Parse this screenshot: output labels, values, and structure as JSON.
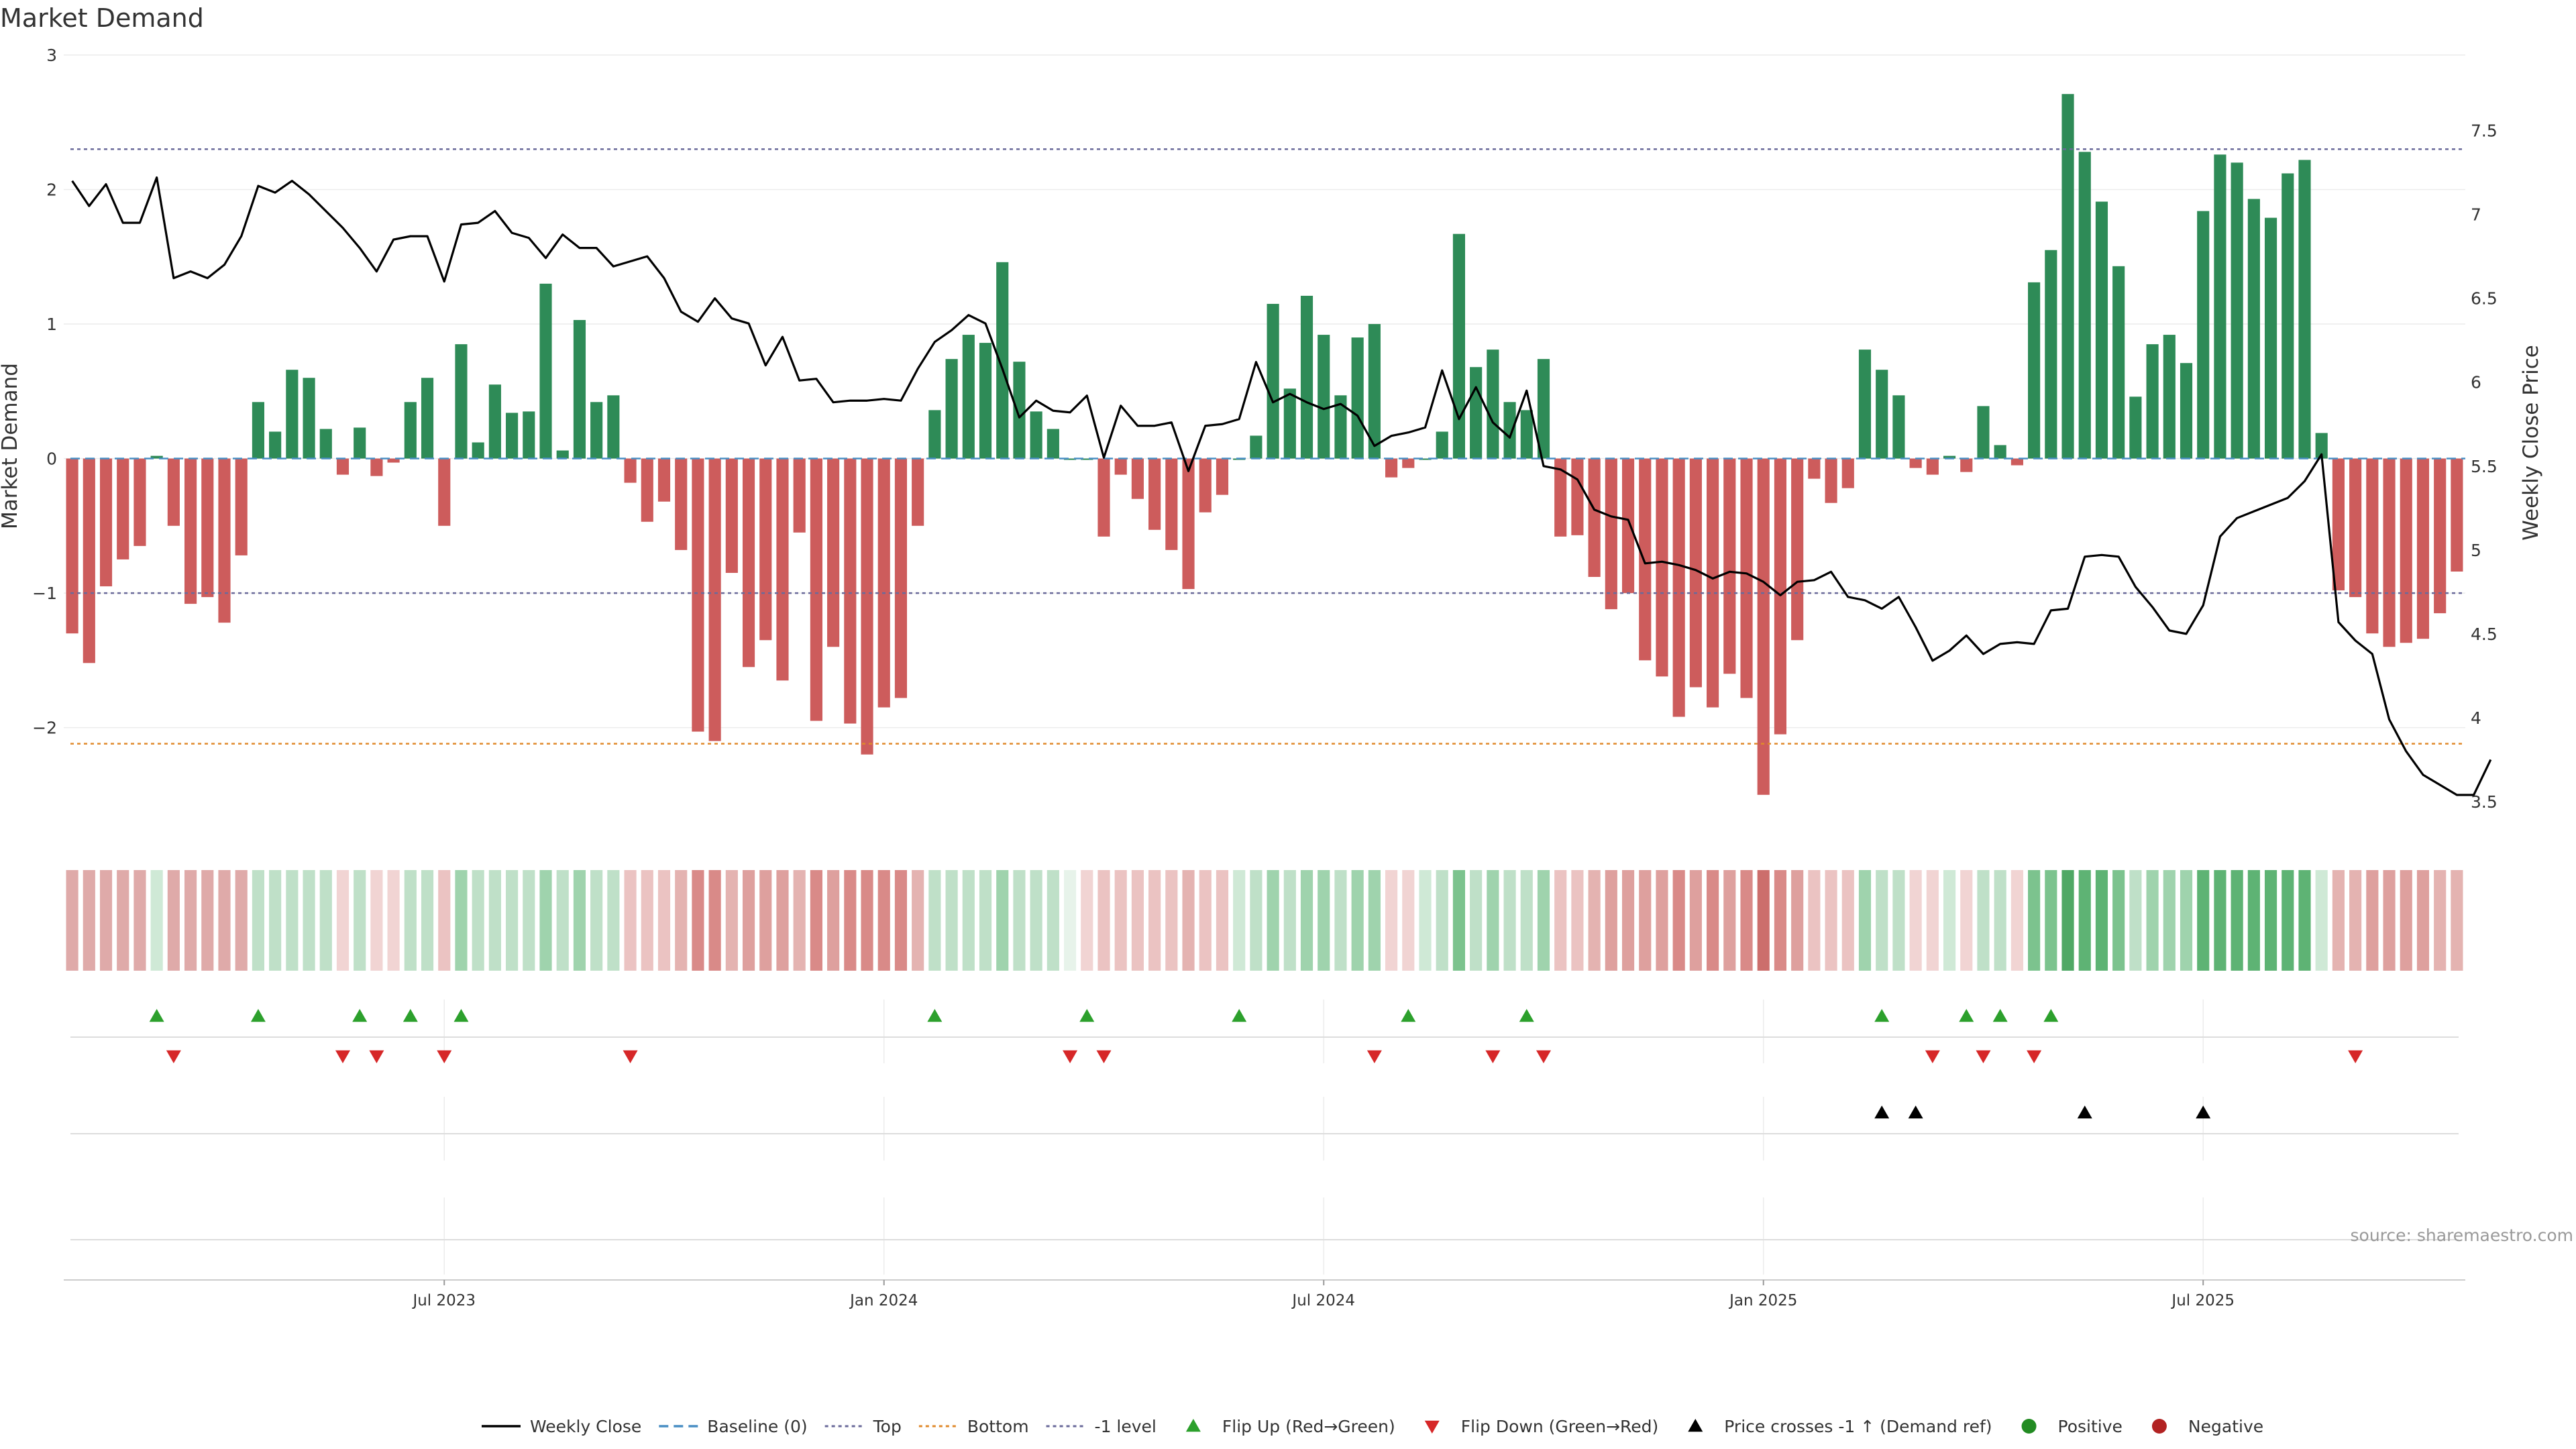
{
  "chart_data": {
    "type": "bar",
    "title": "Market Demand",
    "ylabel": "Market Demand",
    "y2label": "Weekly Close Price",
    "ylim": [
      -2.8,
      3.0
    ],
    "y2lim": [
      3.3,
      7.95
    ],
    "left_ticks": [
      {
        "value": 3,
        "label": "3"
      },
      {
        "value": 2,
        "label": "2"
      },
      {
        "value": 1,
        "label": "1"
      },
      {
        "value": 0,
        "label": "0"
      },
      {
        "value": -1,
        "label": "−1"
      },
      {
        "value": -2,
        "label": "−2"
      }
    ],
    "right_ticks": [
      {
        "value": 7.5,
        "label": "7.5"
      },
      {
        "value": 7,
        "label": "7"
      },
      {
        "value": 6.5,
        "label": "6.5"
      },
      {
        "value": 6,
        "label": "6"
      },
      {
        "value": 5.5,
        "label": "5.5"
      },
      {
        "value": 5,
        "label": "5"
      },
      {
        "value": 4.5,
        "label": "4.5"
      },
      {
        "value": 4,
        "label": "4"
      },
      {
        "value": 3.5,
        "label": "3.5"
      }
    ],
    "x_ticks": [
      {
        "week": 22,
        "label": "Jul 2023"
      },
      {
        "week": 48,
        "label": "Jan 2024"
      },
      {
        "week": 74,
        "label": "Jul 2024"
      },
      {
        "week": 100,
        "label": "Jan 2025"
      },
      {
        "week": 126,
        "label": "Jul 2025"
      }
    ],
    "reference_lines": {
      "top": 2.3,
      "bottom": -2.12,
      "minus_one": -1.0
    },
    "demand": [
      -1.3,
      -1.52,
      -0.95,
      -0.75,
      -0.65,
      0.02,
      -0.5,
      -1.08,
      -1.03,
      -1.22,
      -0.72,
      0.42,
      0.2,
      0.66,
      0.6,
      0.22,
      -0.12,
      0.23,
      -0.13,
      -0.03,
      0.42,
      0.6,
      -0.5,
      0.85,
      0.12,
      0.55,
      0.34,
      0.35,
      1.3,
      0.06,
      1.03,
      0.42,
      0.47,
      -0.18,
      -0.47,
      -0.32,
      -0.68,
      -2.03,
      -2.1,
      -0.85,
      -1.55,
      -1.35,
      -1.65,
      -0.55,
      -1.95,
      -1.4,
      -1.97,
      -2.2,
      -1.85,
      -1.78,
      -0.5,
      0.36,
      0.74,
      0.92,
      0.86,
      1.46,
      0.72,
      0.35,
      0.22,
      0.0,
      0.0,
      -0.58,
      -0.12,
      -0.3,
      -0.53,
      -0.68,
      -0.97,
      -0.4,
      -0.27,
      0.0,
      0.17,
      1.15,
      0.52,
      1.21,
      0.92,
      0.47,
      0.9,
      1.0,
      -0.14,
      -0.07,
      0.0,
      0.2,
      1.67,
      0.68,
      0.81,
      0.42,
      0.36,
      0.74,
      -0.58,
      -0.57,
      -0.88,
      -1.12,
      -1.0,
      -1.5,
      -1.62,
      -1.92,
      -1.7,
      -1.85,
      -1.6,
      -1.78,
      -2.5,
      -2.05,
      -1.35,
      -0.15,
      -0.33,
      -0.22,
      0.81,
      0.66,
      0.47,
      -0.07,
      -0.12,
      0.02,
      -0.1,
      0.39,
      0.1,
      -0.05,
      1.31,
      1.55,
      2.71,
      2.28,
      1.91,
      1.43,
      0.46,
      0.85,
      0.92,
      0.71,
      1.84,
      2.26,
      2.2,
      1.93,
      1.79,
      2.12,
      2.22,
      0.19,
      -0.98,
      -1.03,
      -1.3,
      -1.4,
      -1.37,
      -1.34,
      -1.15,
      -0.84
    ],
    "close": [
      7.2,
      7.05,
      7.18,
      6.95,
      6.95,
      7.22,
      6.62,
      6.66,
      6.62,
      6.7,
      6.87,
      7.17,
      7.13,
      7.2,
      7.12,
      7.02,
      6.92,
      6.8,
      6.66,
      6.85,
      6.87,
      6.87,
      6.6,
      6.94,
      6.95,
      7.02,
      6.89,
      6.86,
      6.74,
      6.88,
      6.8,
      6.8,
      6.69,
      6.72,
      6.75,
      6.62,
      6.42,
      6.36,
      6.5,
      6.38,
      6.35,
      6.1,
      6.27,
      6.01,
      6.02,
      5.88,
      5.89,
      5.89,
      5.9,
      5.89,
      6.08,
      6.24,
      6.31,
      6.4,
      6.35,
      6.08,
      5.79,
      5.89,
      5.83,
      5.82,
      5.92,
      5.55,
      5.86,
      5.74,
      5.74,
      5.76,
      5.47,
      5.74,
      5.75,
      5.78,
      6.12,
      5.88,
      5.93,
      5.88,
      5.84,
      5.87,
      5.8,
      5.62,
      5.68,
      5.7,
      5.73,
      6.07,
      5.78,
      5.97,
      5.76,
      5.67,
      5.95,
      5.5,
      5.48,
      5.42,
      5.24,
      5.2,
      5.18,
      4.92,
      4.93,
      4.91,
      4.88,
      4.83,
      4.87,
      4.86,
      4.81,
      4.73,
      4.81,
      4.82,
      4.87,
      4.72,
      4.7,
      4.65,
      4.72,
      4.54,
      4.34,
      4.4,
      4.49,
      4.38,
      4.44,
      4.45,
      4.44,
      4.64,
      4.65,
      4.96,
      4.97,
      4.96,
      4.78,
      4.66,
      4.52,
      4.5,
      4.67,
      5.08,
      5.19,
      5.23,
      5.27,
      5.31,
      5.41,
      5.57,
      4.57,
      4.46,
      4.38,
      3.99,
      3.8,
      3.66,
      3.6,
      3.54,
      3.54,
      3.75
    ],
    "heat_colors": [
      "#dfaaa9",
      "#dfaaa9",
      "#dfaaa9",
      "#dfaaa9",
      "#dfaaa9",
      "#cfe9d6",
      "#dfaaa9",
      "#dfaaa9",
      "#dfaaa9",
      "#dfaaa9",
      "#dfaaa9",
      "#bfe0c8",
      "#bfe0c8",
      "#bfe0c8",
      "#bfe0c8",
      "#bfe0c8",
      "#f1d4d3",
      "#bfe0c8",
      "#f1d4d3",
      "#f1d4d3",
      "#bfe0c8",
      "#bfe0c8",
      "#ebc3c2",
      "#9fd3ad",
      "#bfe0c8",
      "#bfe0c8",
      "#bfe0c8",
      "#bfe0c8",
      "#9fd3ad",
      "#bfe0c8",
      "#9fd3ad",
      "#bfe0c8",
      "#bfe0c8",
      "#ebc3c2",
      "#ebc3c2",
      "#ebc3c2",
      "#e4b3b1",
      "#d98a88",
      "#d98a88",
      "#e4b3b1",
      "#dea09e",
      "#dea09e",
      "#dea09e",
      "#e4b3b1",
      "#d98a88",
      "#dea09e",
      "#d98a88",
      "#d98a88",
      "#d98a88",
      "#d98a88",
      "#e4b3b1",
      "#bfe0c8",
      "#bfe0c8",
      "#bfe0c8",
      "#bfe0c8",
      "#9fd3ad",
      "#bfe0c8",
      "#bfe0c8",
      "#bfe0c8",
      "#e7f3ea",
      "#f1d4d3",
      "#ebc3c2",
      "#ebc3c2",
      "#ebc3c2",
      "#ebc3c2",
      "#ebc3c2",
      "#e4b3b1",
      "#ebc3c2",
      "#ebc3c2",
      "#cfe9d6",
      "#bfe0c8",
      "#9fd3ad",
      "#bfe0c8",
      "#9fd3ad",
      "#9fd3ad",
      "#bfe0c8",
      "#9fd3ad",
      "#9fd3ad",
      "#f1d4d3",
      "#f1d4d3",
      "#cfe9d6",
      "#bfe0c8",
      "#7cc38e",
      "#bfe0c8",
      "#9fd3ad",
      "#bfe0c8",
      "#bfe0c8",
      "#9fd3ad",
      "#ebc3c2",
      "#ebc3c2",
      "#e4b3b1",
      "#dea09e",
      "#dea09e",
      "#dea09e",
      "#dea09e",
      "#d98a88",
      "#dea09e",
      "#d98a88",
      "#dea09e",
      "#d98a88",
      "#cc6e6c",
      "#d98a88",
      "#dea09e",
      "#ebc3c2",
      "#ebc3c2",
      "#ebc3c2",
      "#9fd3ad",
      "#bfe0c8",
      "#bfe0c8",
      "#f1d4d3",
      "#f1d4d3",
      "#cfe9d6",
      "#f1d4d3",
      "#bfe0c8",
      "#bfe0c8",
      "#f1d4d3",
      "#7cc38e",
      "#7cc38e",
      "#4fa865",
      "#5eb374",
      "#5eb374",
      "#7cc38e",
      "#bfe0c8",
      "#9fd3ad",
      "#9fd3ad",
      "#9fd3ad",
      "#5eb374",
      "#5eb374",
      "#5eb374",
      "#5eb374",
      "#5eb374",
      "#5eb374",
      "#5eb374",
      "#cfe9d6",
      "#e4b3b1",
      "#e4b3b1",
      "#dea09e",
      "#dea09e",
      "#dea09e",
      "#dea09e",
      "#e4b3b1",
      "#e4b3b1"
    ],
    "flip_up_weeks": [
      5,
      11,
      17,
      20,
      23,
      51,
      60,
      69,
      79,
      86,
      107,
      112,
      114,
      117
    ],
    "flip_down_weeks": [
      6,
      16,
      18,
      22,
      33,
      59,
      61,
      77,
      84,
      87,
      110,
      113,
      116,
      135
    ],
    "price_cross_weeks": [
      107,
      109,
      119,
      126
    ],
    "positive_weeks": [],
    "negative_weeks": [],
    "legend": [
      {
        "label": "Weekly Close",
        "symbol": "line-black"
      },
      {
        "label": "Baseline (0)",
        "symbol": "dash-blue"
      },
      {
        "label": "Top",
        "symbol": "dash-slate"
      },
      {
        "label": "Bottom",
        "symbol": "dash-orange"
      },
      {
        "label": "-1 level",
        "symbol": "dash-slate"
      },
      {
        "label": "Flip Up (Red→Green)",
        "symbol": "tri-up-green"
      },
      {
        "label": "Flip Down (Green→Red)",
        "symbol": "tri-down-red"
      },
      {
        "label": "Price crosses -1 ↑ (Demand ref)",
        "symbol": "tri-up-black"
      },
      {
        "label": "Positive",
        "symbol": "dot-green"
      },
      {
        "label": "Negative",
        "symbol": "dot-red"
      }
    ],
    "colors": {
      "positive_bar": "#2e8b57",
      "negative_bar": "#cd5c5c",
      "close_line": "#000000",
      "baseline": "#4a8fc4",
      "top_line": "#6a6a9a",
      "bottom_line": "#e08a2c",
      "minus_one_line": "#6a6a9a",
      "flip_up": "#2ca02c",
      "flip_down": "#d62728",
      "price_cross": "#000000",
      "positive_dot": "#228b22",
      "negative_dot": "#b22222"
    }
  },
  "source_text": "source: sharemaestro.com"
}
